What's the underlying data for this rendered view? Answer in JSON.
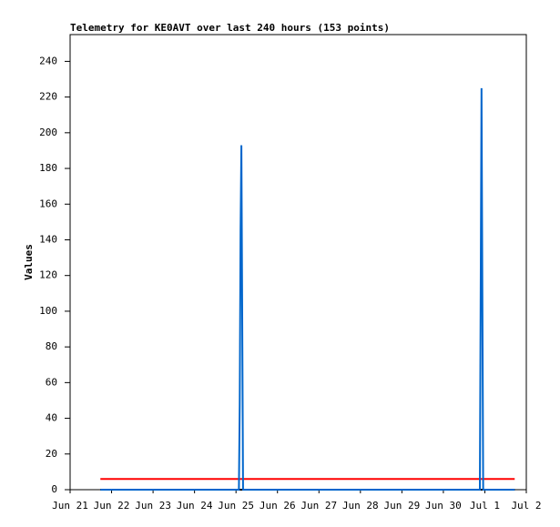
{
  "chart_data": {
    "type": "line",
    "title": "Telemetry for KE0AVT over last 240 hours (153 points)",
    "y_label": "Values",
    "x": [
      0.73,
      4.07,
      4.09,
      4.11,
      4.13,
      4.15,
      4.17,
      4.19,
      9.88,
      9.9,
      9.92,
      9.94,
      9.96,
      10.72
    ],
    "series": [
      {
        "color": "#ff0000",
        "values": [
          6,
          6,
          6,
          6,
          6,
          6,
          6,
          6,
          6,
          6,
          6,
          6,
          6,
          6
        ]
      },
      {
        "color": "#000000",
        "values": [
          0,
          0,
          0,
          0,
          0,
          0,
          0,
          0,
          0,
          0,
          0,
          0,
          0,
          0
        ]
      },
      {
        "color": "#0066cc",
        "values": [
          0,
          0,
          48,
          145,
          193,
          97,
          0,
          0,
          0,
          112,
          225,
          112,
          0,
          0
        ]
      }
    ],
    "xlim": [
      0,
      11
    ],
    "xticks": [
      {
        "value": 0,
        "label": "Jun 21"
      },
      {
        "value": 1,
        "label": "Jun 22"
      },
      {
        "value": 2,
        "label": "Jun 23"
      },
      {
        "value": 3,
        "label": "Jun 24"
      },
      {
        "value": 4,
        "label": "Jun 25"
      },
      {
        "value": 5,
        "label": "Jun 26"
      },
      {
        "value": 6,
        "label": "Jun 27"
      },
      {
        "value": 7,
        "label": "Jun 28"
      },
      {
        "value": 8,
        "label": "Jun 29"
      },
      {
        "value": 9,
        "label": "Jun 30"
      },
      {
        "value": 10,
        "label": "Jul 1"
      },
      {
        "value": 11,
        "label": "Jul 2"
      }
    ],
    "ylim": [
      0,
      255
    ],
    "yticks": [
      0,
      20,
      40,
      60,
      80,
      100,
      120,
      140,
      160,
      180,
      200,
      220,
      240
    ],
    "grid": false
  }
}
